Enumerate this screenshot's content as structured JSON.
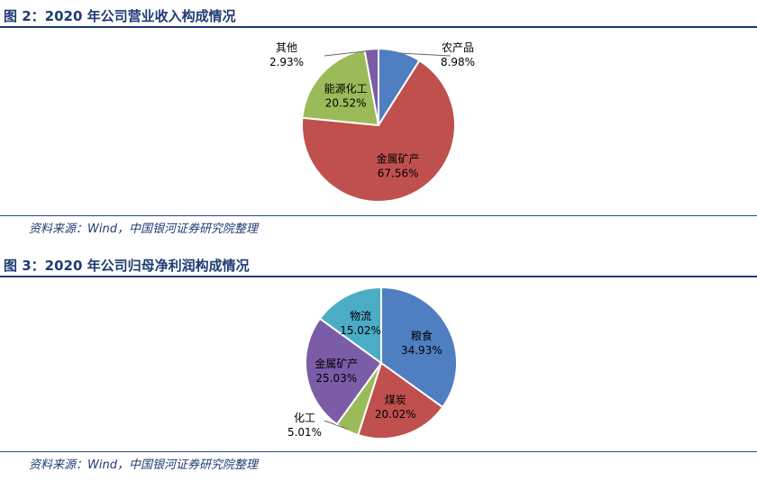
{
  "figures": [
    {
      "title": "图 2：2020 年公司营业收入构成情况",
      "source": "资料来源：Wind，中国银河证券研究院整理"
    },
    {
      "title": "图 3：2020 年公司归母净利润构成情况",
      "source": "资料来源：Wind，中国银河证券研究院整理"
    }
  ],
  "chart_data": [
    {
      "type": "pie",
      "title": "图 2：2020 年公司营业收入构成情况",
      "start_angle_deg": 0,
      "direction": "clockwise",
      "slices": [
        {
          "name": "农产品",
          "value": 8.98,
          "label": "8.98%",
          "color": "#4f7fc1"
        },
        {
          "name": "金属矿产",
          "value": 67.56,
          "label": "67.56%",
          "color": "#c0504d"
        },
        {
          "name": "能源化工",
          "value": 20.52,
          "label": "20.52%",
          "color": "#9bbb59"
        },
        {
          "name": "其他",
          "value": 2.93,
          "label": "2.93%",
          "color": "#7b5ca6"
        }
      ]
    },
    {
      "type": "pie",
      "title": "图 3：2020 年公司归母净利润构成情况",
      "start_angle_deg": 0,
      "direction": "clockwise",
      "slices": [
        {
          "name": "粮食",
          "value": 34.93,
          "label": "34.93%",
          "color": "#4f7fc1"
        },
        {
          "name": "煤炭",
          "value": 20.02,
          "label": "20.02%",
          "color": "#c0504d"
        },
        {
          "name": "化工",
          "value": 5.01,
          "label": "5.01%",
          "color": "#9bbb59"
        },
        {
          "name": "金属矿产",
          "value": 25.03,
          "label": "25.03%",
          "color": "#7b5ca6"
        },
        {
          "name": "物流",
          "value": 15.02,
          "label": "15.02%",
          "color": "#4bacc6"
        }
      ]
    }
  ]
}
